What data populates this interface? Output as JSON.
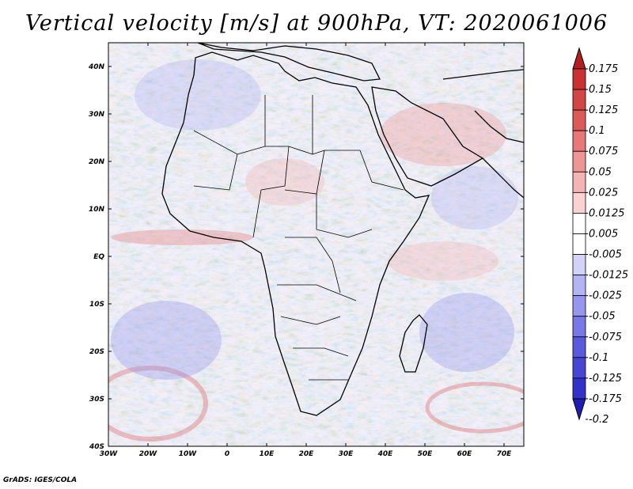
{
  "title": "Vertical velocity [m/s] at 900hPa, VT: 2020061006",
  "footer": "GrADS: IGES/COLA",
  "axes": {
    "lon": {
      "min": -30,
      "max": 75,
      "ticks": [
        -30,
        -20,
        -10,
        0,
        10,
        20,
        30,
        40,
        50,
        60,
        70
      ],
      "labels": [
        "30W",
        "20W",
        "10W",
        "0",
        "10E",
        "20E",
        "30E",
        "40E",
        "50E",
        "60E",
        "70E"
      ]
    },
    "lat": {
      "min": -40,
      "max": 45,
      "ticks": [
        -40,
        -30,
        -20,
        -10,
        0,
        10,
        20,
        30,
        40
      ],
      "labels": [
        "40S",
        "30S",
        "20S",
        "10S",
        "EQ",
        "10N",
        "20N",
        "30N",
        "40N"
      ]
    }
  },
  "colorbar": {
    "levels": [
      "0.175",
      "0.15",
      "0.125",
      "0.1",
      "0.075",
      "0.05",
      "0.025",
      "0.0125",
      "0.005",
      "-0.005",
      "-0.0125",
      "-0.025",
      "-0.05",
      "-0.075",
      "-0.1",
      "-0.125",
      "-0.175",
      "-0.2"
    ],
    "colors": [
      "#b41e1e",
      "#c83232",
      "#d24646",
      "#dc5a5a",
      "#e67878",
      "#ee9696",
      "#f4b4b4",
      "#fad2d2",
      "#ffffff",
      "#ffffff",
      "#d2d2fa",
      "#b4b4f4",
      "#9696ee",
      "#7878e6",
      "#5a5adc",
      "#4646d2",
      "#3232c8",
      "#1e1eb4"
    ],
    "colors_labels": [
      "top-arrow-red",
      "bottom-arrow-blue"
    ]
  },
  "accent_colors": {
    "upward": "#c83232",
    "downward": "#3232c8",
    "coastline": "#000000"
  }
}
